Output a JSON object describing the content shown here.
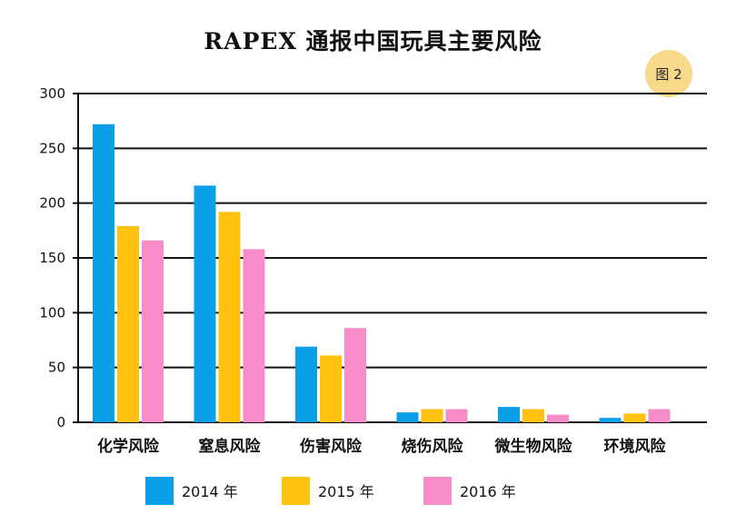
{
  "chart_data": {
    "type": "bar",
    "title": "RAPEX 通报中国玩具主要风险",
    "figure_label": "图 2",
    "categories": [
      "化学风险",
      "窒息风险",
      "伤害风险",
      "烧伤风险",
      "微生物风险",
      "环境风险"
    ],
    "series": [
      {
        "name": "2014 年",
        "color": "#0aa0e8",
        "values": [
          272,
          216,
          69,
          9,
          14,
          4
        ]
      },
      {
        "name": "2015 年",
        "color": "#ffc20e",
        "values": [
          179,
          192,
          61,
          12,
          12,
          8
        ]
      },
      {
        "name": "2016 年",
        "color": "#f78dc8",
        "values": [
          166,
          158,
          86,
          12,
          7,
          12
        ]
      }
    ],
    "ylim": [
      0,
      300
    ],
    "yticks": [
      0,
      50,
      100,
      150,
      200,
      250,
      300
    ],
    "grid": true,
    "legend_position": "bottom"
  }
}
